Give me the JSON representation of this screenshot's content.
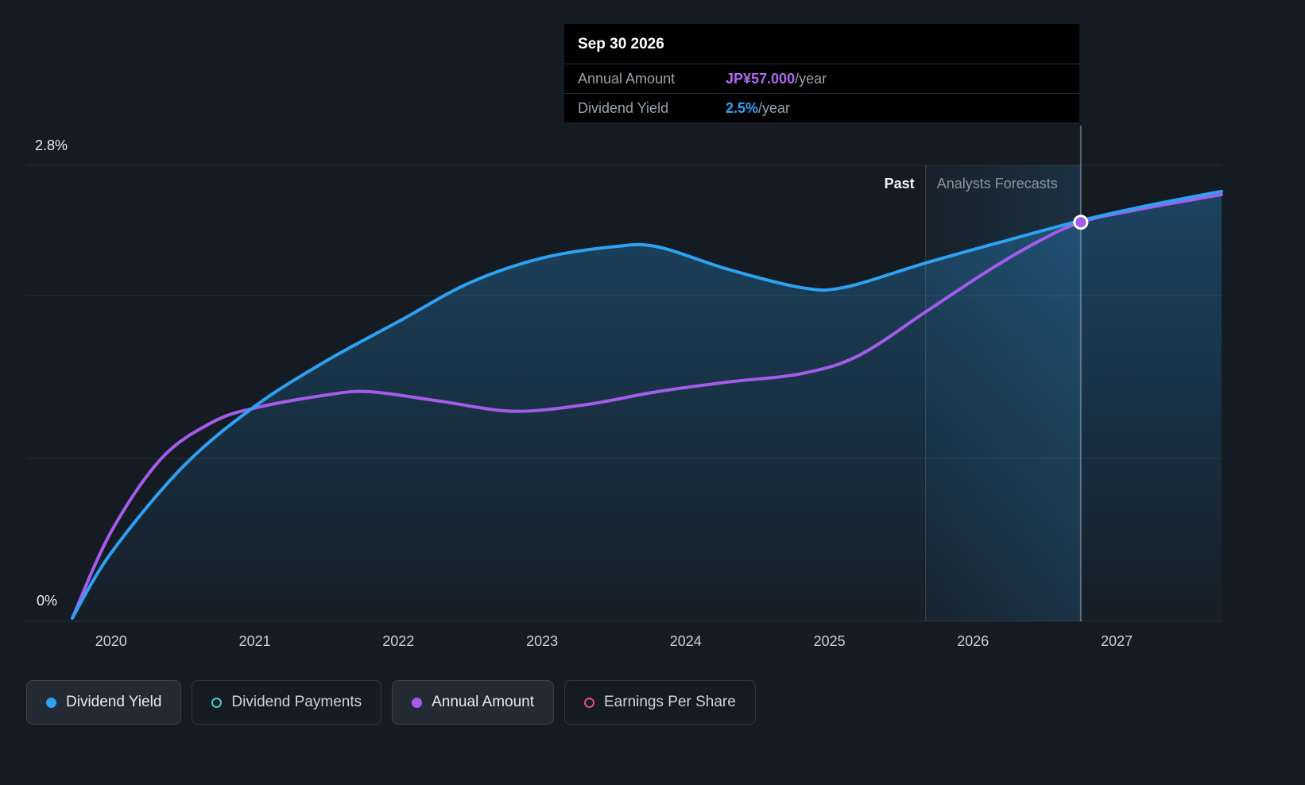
{
  "tooltip": {
    "title": "Sep 30 2026",
    "rows": [
      {
        "label": "Annual Amount",
        "value": "JP¥57.000",
        "suffix": "/year",
        "color": "#b168f2"
      },
      {
        "label": "Dividend Yield",
        "value": "2.5%",
        "suffix": "/year",
        "color": "#2da2f2"
      }
    ]
  },
  "axis": {
    "y_top_label": "2.8%",
    "y_bottom_label": "0%",
    "x_ticks": [
      "2020",
      "2021",
      "2022",
      "2023",
      "2024",
      "2025",
      "2026",
      "2027"
    ]
  },
  "annotations": {
    "past_label": "Past",
    "forecast_label": "Analysts Forecasts"
  },
  "legend": [
    {
      "id": "dividend-yield",
      "label": "Dividend Yield",
      "color": "#2da2f2",
      "filled": true,
      "active": true
    },
    {
      "id": "dividend-payments",
      "label": "Dividend Payments",
      "color": "#45cfc1",
      "filled": false,
      "active": false
    },
    {
      "id": "annual-amount",
      "label": "Annual Amount",
      "color": "#a35ceb",
      "filled": true,
      "active": true
    },
    {
      "id": "earnings-per-share",
      "label": "Earnings Per Share",
      "color": "#e04a96",
      "filled": false,
      "active": false
    }
  ],
  "chart_data": {
    "type": "line",
    "x_unit": "year",
    "xlim": [
      2019.73,
      2027.73
    ],
    "ylim": [
      0,
      2.8
    ],
    "y_gridlines": [
      0,
      1,
      2,
      2.8
    ],
    "grid": true,
    "legend_position": "bottom",
    "divider_x": 2025.67,
    "marker": {
      "x": 2026.75,
      "y": 2.45,
      "series": "Annual Amount",
      "date": "Sep 30 2026"
    },
    "series": [
      {
        "name": "Dividend Yield",
        "color": "#2da2f2",
        "area": true,
        "points": [
          [
            2019.73,
            0.02
          ],
          [
            2020.0,
            0.42
          ],
          [
            2020.5,
            0.95
          ],
          [
            2021.0,
            1.32
          ],
          [
            2021.5,
            1.6
          ],
          [
            2022.0,
            1.84
          ],
          [
            2022.5,
            2.08
          ],
          [
            2023.0,
            2.23
          ],
          [
            2023.5,
            2.3
          ],
          [
            2023.8,
            2.3
          ],
          [
            2024.3,
            2.16
          ],
          [
            2024.8,
            2.05
          ],
          [
            2025.1,
            2.05
          ],
          [
            2025.67,
            2.2
          ],
          [
            2026.2,
            2.33
          ],
          [
            2026.75,
            2.46
          ],
          [
            2027.2,
            2.55
          ],
          [
            2027.73,
            2.64
          ]
        ]
      },
      {
        "name": "Annual Amount",
        "color": "#a35ceb",
        "area": false,
        "points": [
          [
            2019.73,
            0.02
          ],
          [
            2020.0,
            0.55
          ],
          [
            2020.35,
            1.0
          ],
          [
            2020.7,
            1.22
          ],
          [
            2021.0,
            1.31
          ],
          [
            2021.5,
            1.39
          ],
          [
            2021.8,
            1.41
          ],
          [
            2022.3,
            1.35
          ],
          [
            2022.8,
            1.29
          ],
          [
            2023.3,
            1.33
          ],
          [
            2023.8,
            1.41
          ],
          [
            2024.3,
            1.47
          ],
          [
            2024.8,
            1.52
          ],
          [
            2025.2,
            1.63
          ],
          [
            2025.67,
            1.9
          ],
          [
            2026.1,
            2.15
          ],
          [
            2026.45,
            2.33
          ],
          [
            2026.75,
            2.45
          ],
          [
            2027.1,
            2.52
          ],
          [
            2027.73,
            2.62
          ]
        ]
      }
    ]
  }
}
